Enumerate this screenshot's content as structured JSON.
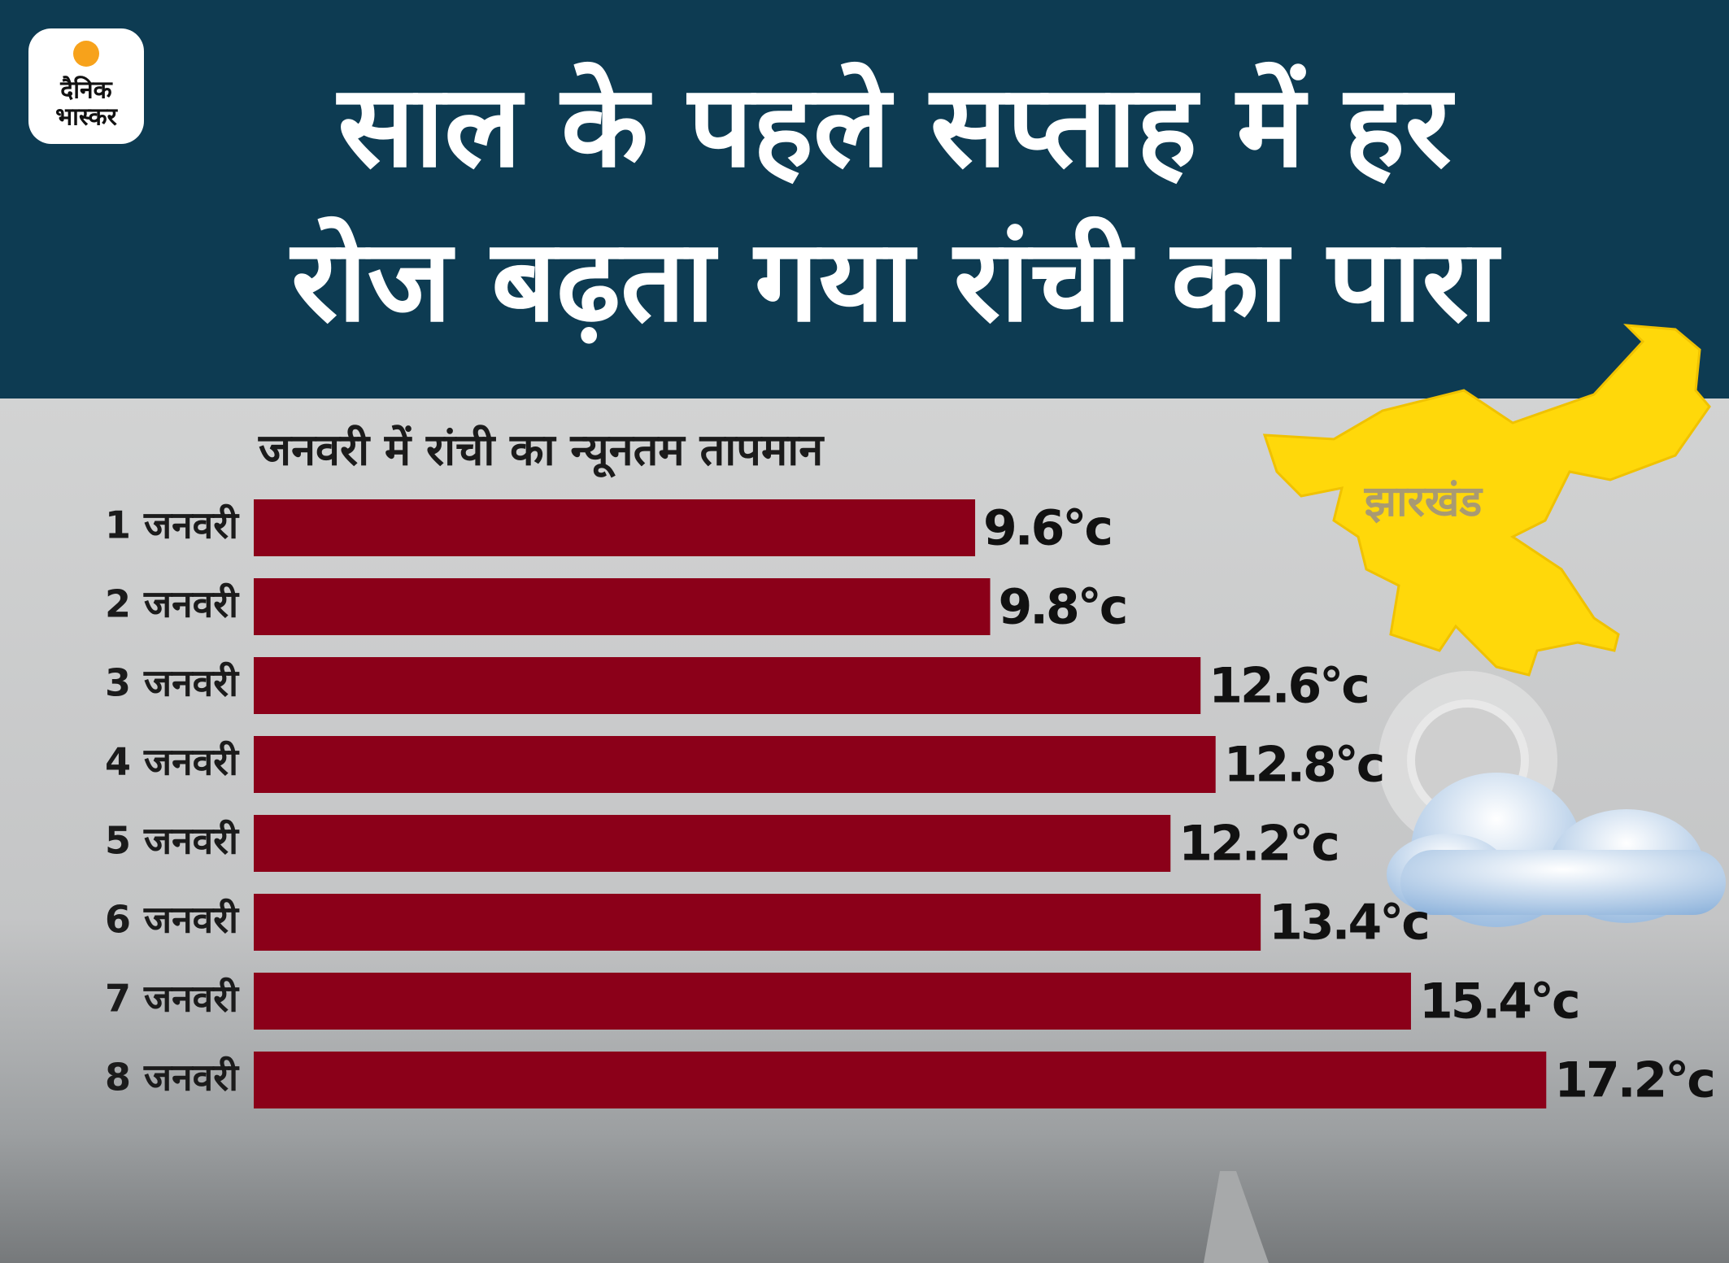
{
  "logo": {
    "line1": "दैनिक",
    "line2": "भास्कर"
  },
  "header": {
    "title_line1": "साल के पहले सप्ताह में हर",
    "title_line2": "रोज बढ़ता गया रांची का पारा"
  },
  "map_label": "झारखंड",
  "chart_data": {
    "type": "bar",
    "orientation": "horizontal",
    "title": "जनवरी में रांची का न्यूनतम तापमान",
    "categories": [
      "1 जनवरी",
      "2 जनवरी",
      "3 जनवरी",
      "4 जनवरी",
      "5 जनवरी",
      "6 जनवरी",
      "7 जनवरी",
      "8 जनवरी"
    ],
    "values": [
      9.6,
      9.8,
      12.6,
      12.8,
      12.2,
      13.4,
      15.4,
      17.2
    ],
    "value_labels": [
      "9.6°c",
      "9.8°c",
      "12.6°c",
      "12.8°c",
      "12.2°c",
      "13.4°c",
      "15.4°c",
      "17.2°c"
    ],
    "color": "#8b0019"
  }
}
